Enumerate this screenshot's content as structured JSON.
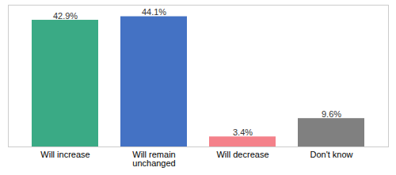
{
  "chart_data": {
    "type": "bar",
    "categories": [
      "Will increase",
      "Will remain\nunchanged",
      "Will decrease",
      "Don't know"
    ],
    "values": [
      42.9,
      44.1,
      3.4,
      9.6
    ],
    "value_labels": [
      "42.9%",
      "44.1%",
      "3.4%",
      "9.6%"
    ],
    "colors": [
      "#3aaa85",
      "#4472c4",
      "#f4818a",
      "#808080"
    ],
    "ylim": [
      0,
      48
    ],
    "data_labels": true,
    "tick_labels": "x"
  }
}
